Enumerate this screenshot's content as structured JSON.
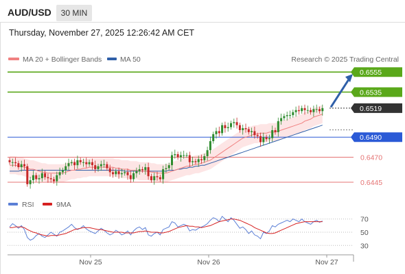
{
  "header": {
    "pair": "AUD/USD",
    "timeframe": "30 MIN",
    "datetime": "Thursday, November 27, 2025 12:26:42 AM CET"
  },
  "legend": {
    "ma20_label": "MA 20 + Bollinger Bands",
    "ma50_label": "MA 50",
    "ma20_color": "#f08080",
    "ma50_color": "#2f5fa8",
    "source": "Research © 2025 Trading Central"
  },
  "rsi_legend": {
    "rsi_label": "RSI",
    "ma9_label": "9MA",
    "rsi_color": "#5b7fd6",
    "ma9_color": "#d62020"
  },
  "colors": {
    "bull_candle": "#2e8b2e",
    "bear_candle": "#c62828",
    "resistance": "#5aa81a",
    "pivot": "#2b5ad6",
    "support": "#e57373",
    "current": "#333333",
    "arrow": "#2f5fa8",
    "band_fill": "#fde0e0"
  },
  "chart_data": [
    {
      "type": "candlestick",
      "series_name": "AUD/USD",
      "x_ticks": [
        "Nov 25",
        "Nov 26",
        "Nov 27"
      ],
      "ylim": [
        0.6432,
        0.6562
      ],
      "levels": [
        {
          "label": "0.6555",
          "value": 0.6555,
          "kind": "resistance"
        },
        {
          "label": "0.6535",
          "value": 0.6535,
          "kind": "resistance"
        },
        {
          "label": "0.6519",
          "value": 0.6519,
          "kind": "current"
        },
        {
          "label": "0.6490",
          "value": 0.649,
          "kind": "pivot"
        },
        {
          "label": "0.6470",
          "value": 0.647,
          "kind": "support"
        },
        {
          "label": "0.6445",
          "value": 0.6445,
          "kind": "support"
        }
      ],
      "close": [
        0.6465,
        0.6465,
        0.6464,
        0.646,
        0.6463,
        0.6461,
        0.6443,
        0.6447,
        0.6452,
        0.6448,
        0.6449,
        0.6454,
        0.645,
        0.6449,
        0.6448,
        0.6446,
        0.6452,
        0.6455,
        0.6457,
        0.6461,
        0.6464,
        0.6465,
        0.6462,
        0.6467,
        0.6465,
        0.6465,
        0.6463,
        0.6465,
        0.6462,
        0.6458,
        0.6461,
        0.6463,
        0.6463,
        0.6459,
        0.6455,
        0.6453,
        0.6456,
        0.6453,
        0.6454,
        0.6455,
        0.6452,
        0.6448,
        0.6454,
        0.6456,
        0.6458,
        0.6457,
        0.646,
        0.6451,
        0.6447,
        0.6451,
        0.645,
        0.6448,
        0.6458,
        0.6459,
        0.6462,
        0.6472,
        0.6473,
        0.647,
        0.6472,
        0.6472,
        0.6472,
        0.6465,
        0.6466,
        0.6465,
        0.6468,
        0.6467,
        0.6471,
        0.6477,
        0.6486,
        0.6493,
        0.6496,
        0.6494,
        0.6502,
        0.6499,
        0.65,
        0.6504,
        0.6505,
        0.6502,
        0.6497,
        0.6499,
        0.6498,
        0.6495,
        0.6496,
        0.6492,
        0.6491,
        0.6485,
        0.649,
        0.6488,
        0.6489,
        0.6497,
        0.6495,
        0.6506,
        0.6509,
        0.6511,
        0.6512,
        0.6512,
        0.6515,
        0.6517,
        0.6516,
        0.6519,
        0.6517,
        0.6517,
        0.6515,
        0.6518,
        0.6518,
        0.6516,
        0.6519
      ],
      "ma20": [
        0.6462,
        0.6462,
        0.6462,
        0.6461,
        0.6461,
        0.646,
        0.6459,
        0.6458,
        0.6458,
        0.6457,
        0.6456,
        0.6455,
        0.6455,
        0.6454,
        0.6454,
        0.6454,
        0.6454,
        0.6454,
        0.6454,
        0.6455,
        0.6456,
        0.6457,
        0.6457,
        0.6458,
        0.6458,
        0.6459,
        0.6459,
        0.646,
        0.646,
        0.646,
        0.646,
        0.646,
        0.646,
        0.646,
        0.646,
        0.646,
        0.6459,
        0.6459,
        0.6458,
        0.6458,
        0.6458,
        0.6457,
        0.6457,
        0.6457,
        0.6456,
        0.6456,
        0.6456,
        0.6456,
        0.6455,
        0.6455,
        0.6454,
        0.6454,
        0.6454,
        0.6454,
        0.6455,
        0.6456,
        0.6457,
        0.6458,
        0.6459,
        0.646,
        0.6461,
        0.6461,
        0.6462,
        0.6463,
        0.6463,
        0.6464,
        0.6465,
        0.6466,
        0.6467,
        0.6469,
        0.6471,
        0.6473,
        0.6475,
        0.6477,
        0.6479,
        0.6481,
        0.6483,
        0.6485,
        0.6487,
        0.6489,
        0.649,
        0.6491,
        0.6492,
        0.6493,
        0.6493,
        0.6494,
        0.6494,
        0.6494,
        0.6495,
        0.6495,
        0.6495,
        0.6496,
        0.6497,
        0.6498,
        0.6499,
        0.65,
        0.6501,
        0.6502,
        0.6503,
        0.6504,
        0.6506,
        0.6507,
        0.6508,
        0.651,
        0.6511,
        0.6512,
        0.6513
      ],
      "ma50": [
        0.6456,
        0.6456,
        0.6456,
        0.6456,
        0.6457,
        0.6457,
        0.6457,
        0.6457,
        0.6457,
        0.6457,
        0.6457,
        0.6457,
        0.6457,
        0.6457,
        0.6457,
        0.6457,
        0.6457,
        0.6457,
        0.6457,
        0.6457,
        0.6457,
        0.6457,
        0.6457,
        0.6457,
        0.6457,
        0.6457,
        0.6457,
        0.6457,
        0.6457,
        0.6457,
        0.6457,
        0.6457,
        0.6457,
        0.6457,
        0.6457,
        0.6457,
        0.6457,
        0.6457,
        0.6457,
        0.6456,
        0.6456,
        0.6456,
        0.6456,
        0.6456,
        0.6456,
        0.6456,
        0.6456,
        0.6456,
        0.6456,
        0.6456,
        0.6456,
        0.6456,
        0.6456,
        0.6456,
        0.6457,
        0.6457,
        0.6457,
        0.6458,
        0.6458,
        0.6459,
        0.6459,
        0.646,
        0.646,
        0.6461,
        0.6461,
        0.6462,
        0.6462,
        0.6463,
        0.6464,
        0.6465,
        0.6466,
        0.6467,
        0.6468,
        0.6469,
        0.647,
        0.6471,
        0.6472,
        0.6473,
        0.6474,
        0.6475,
        0.6476,
        0.6477,
        0.6478,
        0.6479,
        0.648,
        0.6481,
        0.6482,
        0.6483,
        0.6484,
        0.6485,
        0.6486,
        0.6487,
        0.6488,
        0.6489,
        0.649,
        0.6491,
        0.6492,
        0.6493,
        0.6494,
        0.6495,
        0.6496,
        0.6497,
        0.6498,
        0.6499,
        0.65,
        0.6501,
        0.6502
      ],
      "bollinger_width": 0.0009
    },
    {
      "type": "line",
      "series_name": "RSI",
      "ylim": [
        22,
        78
      ],
      "y_ticks": [
        70,
        50,
        30
      ],
      "rsi": [
        58,
        63,
        60,
        56,
        60,
        54,
        42,
        38,
        40,
        45,
        48,
        44,
        42,
        46,
        50,
        47,
        44,
        50,
        52,
        55,
        58,
        62,
        57,
        54,
        56,
        60,
        55,
        52,
        50,
        48,
        52,
        56,
        53,
        49,
        46,
        48,
        53,
        50,
        46,
        48,
        52,
        46,
        52,
        56,
        58,
        54,
        57,
        46,
        44,
        48,
        50,
        46,
        54,
        56,
        58,
        66,
        64,
        58,
        60,
        62,
        60,
        52,
        54,
        53,
        56,
        58,
        60,
        63,
        68,
        72,
        70,
        66,
        74,
        70,
        66,
        72,
        68,
        62,
        56,
        58,
        54,
        48,
        52,
        46,
        44,
        40,
        50,
        48,
        52,
        60,
        58,
        62,
        64,
        66,
        68,
        66,
        70,
        68,
        66,
        70,
        66,
        64,
        62,
        66,
        68,
        65,
        67
      ],
      "ma9": [
        57,
        57,
        58,
        58,
        58,
        57,
        54,
        52,
        50,
        49,
        47,
        46,
        45,
        44,
        45,
        45,
        45,
        46,
        47,
        48,
        50,
        52,
        54,
        55,
        56,
        57,
        57,
        57,
        56,
        55,
        54,
        54,
        53,
        52,
        51,
        50,
        50,
        50,
        50,
        49,
        49,
        49,
        49,
        50,
        51,
        51,
        52,
        51,
        50,
        50,
        50,
        49,
        49,
        50,
        51,
        53,
        55,
        57,
        58,
        59,
        60,
        59,
        59,
        58,
        58,
        57,
        58,
        59,
        60,
        62,
        64,
        66,
        67,
        68,
        69,
        70,
        70,
        69,
        68,
        66,
        64,
        62,
        60,
        57,
        55,
        53,
        51,
        49,
        48,
        48,
        49,
        51,
        53,
        55,
        57,
        59,
        61,
        63,
        64,
        65,
        66,
        66,
        66,
        66,
        66,
        66,
        66
      ]
    }
  ]
}
